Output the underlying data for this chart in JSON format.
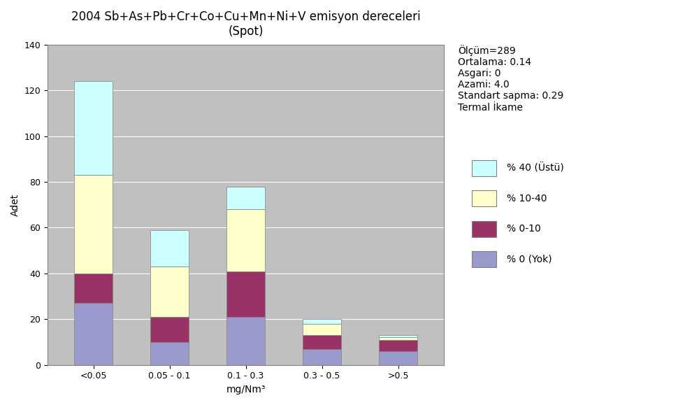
{
  "title_line1": "2004 Sb+As+Pb+Cr+Co+Cu+Mn+Ni+V emisyon dereceleri",
  "title_line2": "(Spot)",
  "xlabel": "mg/Nm³",
  "ylabel": "Adet",
  "categories": [
    "<0.05",
    "0.05 - 0.1",
    "0.1 - 0.3",
    "0.3 - 0.5",
    ">0.5"
  ],
  "series": {
    "% 0 (Yok)": [
      27,
      10,
      21,
      7,
      6
    ],
    "% 0-10": [
      13,
      11,
      20,
      6,
      5
    ],
    "% 10-40": [
      43,
      22,
      27,
      5,
      1
    ],
    "% 40 (Üstü)": [
      41,
      16,
      10,
      2,
      1
    ]
  },
  "colors": {
    "% 0 (Yok)": "#9999CC",
    "% 0-10": "#993366",
    "% 10-40": "#FFFFCC",
    "% 40 (Üstü)": "#CCFFFF"
  },
  "ylim": [
    0,
    140
  ],
  "yticks": [
    0,
    20,
    40,
    60,
    80,
    100,
    120,
    140
  ],
  "stats_lines": [
    "Ölçüm=289",
    "Ortalama: 0.14",
    "Asgari: 0",
    "Azami: 4.0",
    "Standart sapma: 0.29",
    "Termal İkame"
  ],
  "fig_bg_color": "#FFFFFF",
  "plot_bg_color": "#C0C0C0",
  "grid_color": "#FFFFFF",
  "bar_edge_color": "#808080",
  "title_fontsize": 12,
  "axis_label_fontsize": 10,
  "tick_fontsize": 9,
  "legend_fontsize": 10,
  "stats_fontsize": 10,
  "bar_width": 0.5
}
